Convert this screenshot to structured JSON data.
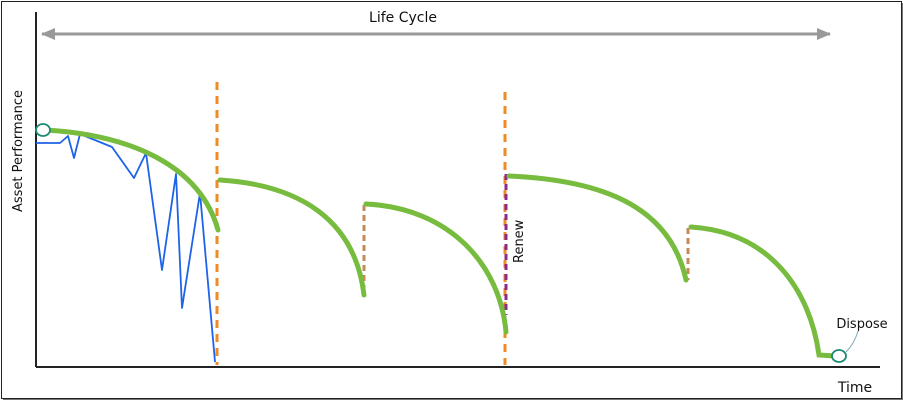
{
  "title": "Life Cycle",
  "y_axis_label": "Asset Performance",
  "x_axis_label": "Time",
  "renew_label": "Renew",
  "dispose_label": "Dispose",
  "colors": {
    "performance_curve": "#77bb3f",
    "maintenance_line": "#1e63e8",
    "intervention_marker": "#f08a24",
    "renew_marker": "#8b2a8f",
    "repair_step": "#c58a55",
    "arrow": "#999999",
    "axis": "#222222",
    "endpoint_marker": "#1a8a72"
  }
}
